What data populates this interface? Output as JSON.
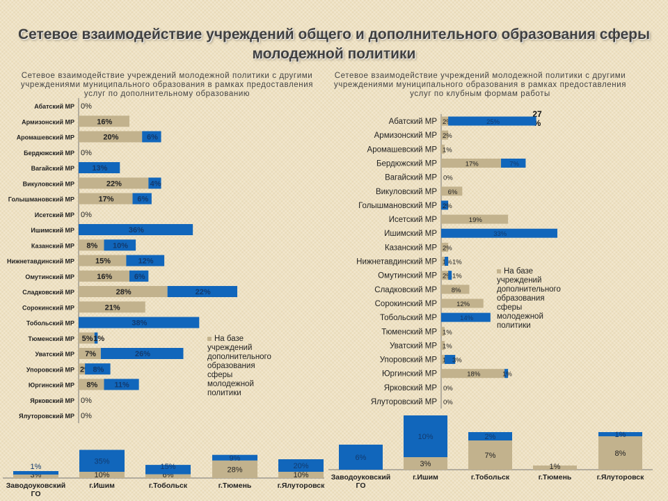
{
  "title": "Сетевое взаимодействие учреждений общего и дополнительного образования сферы молодежной политики",
  "colors": {
    "tan": "#c2b28d",
    "blue": "#1166bb",
    "background": "#efe2c3"
  },
  "chart_data": [
    {
      "type": "bar",
      "orientation": "horizontal",
      "stacked": true,
      "title": "Сетевое взаимодействие учреждений молодежной политики с другими учреждениями муниципального образования в рамках предоставления услуг по дополнительному образованию",
      "legend": {
        "placement": "right",
        "entries": [
          "На базе учреждений дополнительного образования сферы молодежной политики"
        ]
      },
      "categories": [
        "Абатский МР",
        "Армизонский МР",
        "Аромашевский МР",
        "Бердюжский МР",
        "Вагайский МР",
        "Викуловский МР",
        "Голышмановский МР",
        "Исетский МР",
        "Ишимский МР",
        "Казанский МР",
        "Нижнетавдинский МР",
        "Омутинский МР",
        "Сладковский МР",
        "Сорокинский МР",
        "Тобольский МР",
        "Тюменский МР",
        "Уватский МР",
        "Упоровский МР",
        "Юргинский МР",
        "Ярковский МР",
        "Ялуторовский МР"
      ],
      "series": [
        {
          "name": "На базе учреждений дополнительного образования сферы молодежной политики",
          "color": "#c2b28d",
          "values": [
            0,
            16,
            20,
            0,
            0,
            22,
            17,
            0,
            0,
            8,
            15,
            16,
            28,
            21,
            0,
            5,
            7,
            2,
            8,
            0,
            0
          ]
        },
        {
          "color": "#1166bb",
          "values": [
            0,
            0,
            6,
            0,
            13,
            4,
            6,
            0,
            36,
            10,
            12,
            6,
            22,
            0,
            38,
            1,
            26,
            8,
            11,
            0,
            0
          ]
        }
      ]
    },
    {
      "type": "bar",
      "orientation": "horizontal",
      "stacked": true,
      "title": "Сетевое взаимодействие учреждений молодежной политики с другими учреждениями муниципального образования в рамках предоставления услуг по клубным формам работы",
      "legend": {
        "placement": "right",
        "entries": [
          "На базе учреждений дополнительного образования сферы молодежной политики"
        ]
      },
      "annotations": [
        "27 %"
      ],
      "categories": [
        "Абатский МР",
        "Армизонский МР",
        "Аромашевский МР",
        "Бердюжский МР",
        "Вагайский МР",
        "Викуловский МР",
        "Голышмановский МР",
        "Исетский МР",
        "Ишимский МР",
        "Казанский МР",
        "Нижнетавдинский МР",
        "Омутинский МР",
        "Сладковский МР",
        "Сорокинский МР",
        "Тобольский МР",
        "Тюменский МР",
        "Уватский МР",
        "Упоровский МР",
        "Юргинский МР",
        "Ярковский МР",
        "Ялуторовский МР"
      ],
      "series": [
        {
          "name": "На базе учреждений дополнительного образования сферы молодежной политики",
          "color": "#c2b28d",
          "values": [
            2,
            2,
            1,
            17,
            0,
            6,
            0,
            19,
            0,
            2,
            1,
            2,
            8,
            12,
            0,
            1,
            1,
            1,
            18,
            0,
            0
          ]
        },
        {
          "color": "#1166bb",
          "values": [
            25,
            0,
            0,
            7,
            0,
            0,
            2,
            0,
            33,
            0,
            1,
            1,
            0,
            0,
            14,
            0,
            0,
            3,
            1,
            0,
            0
          ]
        }
      ]
    },
    {
      "type": "bar",
      "orientation": "vertical",
      "stacked": true,
      "categories": [
        "Заводоуковский ГО",
        "г.Ишим",
        "г.Тобольск",
        "г.Тюмень",
        "г.Ялуторовск"
      ],
      "series": [
        {
          "color": "#c2b28d",
          "values": [
            3,
            10,
            6,
            28,
            10
          ]
        },
        {
          "color": "#1166bb",
          "values": [
            1,
            35,
            15,
            9,
            20
          ]
        }
      ]
    },
    {
      "type": "bar",
      "orientation": "vertical",
      "stacked": true,
      "categories": [
        "Заводоуковский ГО",
        "г.Ишим",
        "г.Тобольск",
        "г.Тюмень",
        "г.Ялуторовск"
      ],
      "series": [
        {
          "color": "#c2b28d",
          "values": [
            0,
            3,
            7,
            1,
            8
          ]
        },
        {
          "color": "#1166bb",
          "values": [
            6,
            10,
            2,
            0,
            1
          ]
        }
      ]
    }
  ]
}
